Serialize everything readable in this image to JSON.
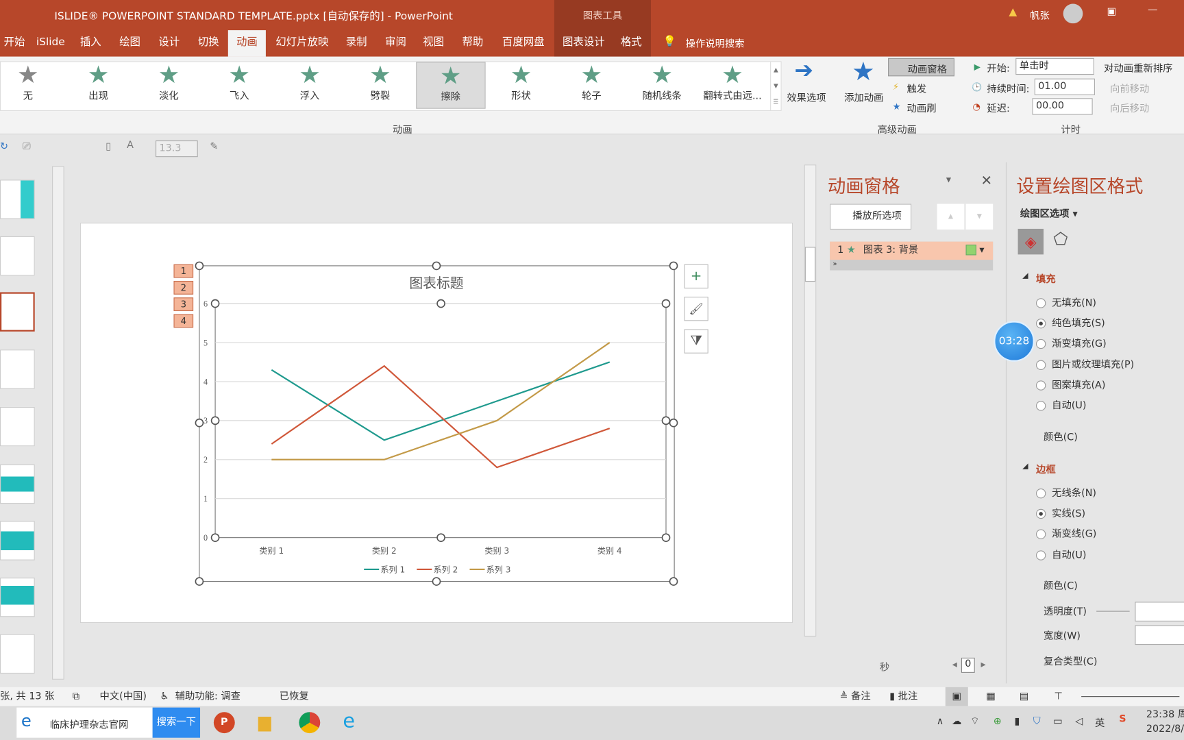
{
  "titlebar": {
    "title": "ISLIDE® POWERPOINT  STANDARD TEMPLATE.pptx [自动保存的]  -  PowerPoint",
    "context": "图表工具",
    "user": "帆张"
  },
  "tabs": [
    "开始",
    "iSlide",
    "插入",
    "绘图",
    "设计",
    "切换",
    "动画",
    "幻灯片放映",
    "录制",
    "审阅",
    "视图",
    "帮助",
    "百度网盘",
    "图表设计",
    "格式"
  ],
  "active_tab": "动画",
  "tell_me": "操作说明搜索",
  "animations": [
    "无",
    "出现",
    "淡化",
    "飞入",
    "浮入",
    "劈裂",
    "擦除",
    "形状",
    "轮子",
    "随机线条",
    "翻转式由远..."
  ],
  "selected_animation": "擦除",
  "ribbon": {
    "effect_options": "效果选项",
    "group_anim": "动画",
    "add_anim": "添加动画",
    "anim_pane": "动画窗格",
    "trigger": "触发",
    "anim_painter": "动画刷",
    "group_adv": "高级动画",
    "start_label": "开始:",
    "start_value": "单击时",
    "duration_label": "持续时间:",
    "duration_value": "01.00",
    "delay_label": "延迟:",
    "delay_value": "00.00",
    "reorder": "对动画重新排序",
    "move_earlier": "向前移动",
    "move_later": "向后移动",
    "group_timing": "计时"
  },
  "qat": {
    "font_size": "13.3"
  },
  "chart_data": {
    "type": "line",
    "title": "图表标题",
    "categories": [
      "类别 1",
      "类别 2",
      "类别 3",
      "类别 4"
    ],
    "ylim": [
      0,
      6
    ],
    "yticks": [
      0,
      1,
      2,
      3,
      4,
      5,
      6
    ],
    "grid": true,
    "legend": "bottom",
    "series": [
      {
        "name": "系列 1",
        "color": "#1f9a8e",
        "values": [
          4.3,
          2.5,
          3.5,
          4.5
        ]
      },
      {
        "name": "系列 2",
        "color": "#d0583a",
        "values": [
          2.4,
          4.4,
          1.8,
          2.8
        ]
      },
      {
        "name": "系列 3",
        "color": "#c39a48",
        "values": [
          2,
          2,
          3,
          5
        ]
      }
    ]
  },
  "anim_tags": [
    "1",
    "2",
    "3",
    "4"
  ],
  "anim_pane": {
    "title": "动画窗格",
    "play": "播放所选项",
    "item_num": "1",
    "item_label": "图表 3: 背景",
    "seconds": "秒",
    "zoom_value": "0"
  },
  "format_pane": {
    "title": "设置绘图区格式",
    "options": "绘图区选项",
    "fill": "填充",
    "fill_options": [
      "无填充(N)",
      "纯色填充(S)",
      "渐变填充(G)",
      "图片或纹理填充(P)",
      "图案填充(A)",
      "自动(U)"
    ],
    "fill_selected": 1,
    "color": "颜色(C)",
    "border": "边框",
    "border_options": [
      "无线条(N)",
      "实线(S)",
      "渐变线(G)",
      "自动(U)"
    ],
    "border_selected": 1,
    "border_color": "颜色(C)",
    "transparency": "透明度(T)",
    "width": "宽度(W)",
    "compound": "复合类型(C)",
    "timer": "03:28"
  },
  "status": {
    "slide": "张, 共 13 张",
    "lang": "中文(中国)",
    "access": "辅助功能: 调查",
    "recovered": "已恢复",
    "notes": "备注",
    "comments": "批注"
  },
  "taskbar": {
    "search_text": "临床护理杂志官网",
    "search_btn": "搜索一下",
    "time": "23:38 周",
    "date": "2022/8/",
    "ime": "英"
  }
}
